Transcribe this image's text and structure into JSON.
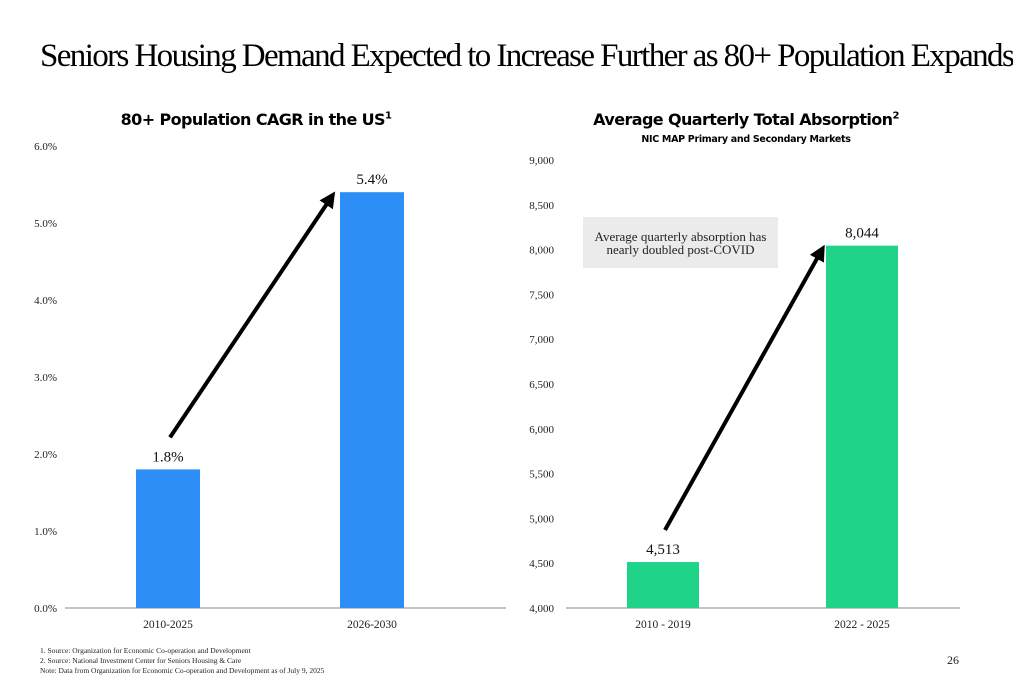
{
  "slide": {
    "title": "Seniors Housing Demand Expected to Increase Further as 80+ Population Expands",
    "page_number": "26"
  },
  "footnotes": [
    "1. Source: Organization for Economic Co-operation and Development",
    "2. Source: National Investment Center for Seniors Housing & Care",
    "Note: Data from Organization for Economic Co-operation and Development as of July 9, 2025"
  ],
  "annotation": {
    "line1": "Average quarterly absorption has",
    "line2": "nearly doubled post-COVID"
  },
  "colors": {
    "left_bar": "#2d8ef5",
    "right_bar": "#1fd488",
    "arrow": "#000000",
    "axis": "#888888"
  },
  "chart_data": [
    {
      "type": "bar",
      "title": "80+ Population CAGR in the US",
      "title_superscript": "1",
      "subtitle": "",
      "xlabel": "",
      "ylabel": "",
      "categories": [
        "2010-2025",
        "2026-2030"
      ],
      "values": [
        1.8,
        5.4
      ],
      "data_labels": [
        "1.8%",
        "5.4%"
      ],
      "ylim": [
        0,
        6
      ],
      "yticks": [
        0,
        1,
        2,
        3,
        4,
        5,
        6
      ],
      "ytick_labels": [
        "0.0%",
        "1.0%",
        "2.0%",
        "3.0%",
        "4.0%",
        "5.0%",
        "6.0%"
      ],
      "grid": false,
      "legend": "none",
      "annotation_arrow": "from first bar to second bar"
    },
    {
      "type": "bar",
      "title": "Average Quarterly Total Absorption",
      "title_superscript": "2",
      "subtitle": "NIC MAP Primary and Secondary Markets",
      "xlabel": "",
      "ylabel": "",
      "categories": [
        "2010 - 2019",
        "2022 - 2025"
      ],
      "values": [
        4513,
        8044
      ],
      "data_labels": [
        "4,513",
        "8,044"
      ],
      "ylim": [
        4000,
        9000
      ],
      "yticks": [
        4000,
        4500,
        5000,
        5500,
        6000,
        6500,
        7000,
        7500,
        8000,
        8500,
        9000
      ],
      "ytick_labels": [
        "4,000",
        "4,500",
        "5,000",
        "5,500",
        "6,000",
        "6,500",
        "7,000",
        "7,500",
        "8,000",
        "8,500",
        "9,000"
      ],
      "grid": false,
      "legend": "none",
      "annotation_arrow": "from first bar to second bar"
    }
  ]
}
